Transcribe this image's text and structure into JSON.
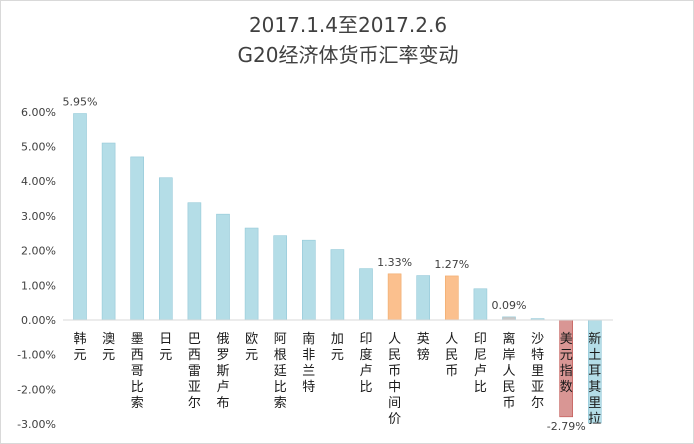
{
  "chart_data": {
    "type": "bar",
    "title": "2017.1.4至2017.2.6",
    "subtitle": "G20经济体货币汇率变动",
    "xlabel": "",
    "ylabel": "",
    "ylim": [
      -0.03,
      0.065
    ],
    "yticks": [
      "-3.00%",
      "-2.00%",
      "-1.00%",
      "0.00%",
      "1.00%",
      "2.00%",
      "3.00%",
      "4.00%",
      "5.00%",
      "6.00%"
    ],
    "grid": false,
    "legend": "none",
    "categories": [
      "韩元",
      "澳元",
      "墨西哥比索",
      "日元",
      "巴西雷亚尔",
      "俄罗斯卢布",
      "欧元",
      "阿根廷比索",
      "南非兰特",
      "加元",
      "印度卢比",
      "人民币中间价",
      "英镑",
      "人民币",
      "印尼卢比",
      "离岸人民币",
      "沙特里亚尔",
      "美元指数",
      "新土耳其里拉"
    ],
    "values": [
      0.0595,
      0.051,
      0.047,
      0.041,
      0.0338,
      0.0305,
      0.0265,
      0.0243,
      0.023,
      0.0203,
      0.0148,
      0.0133,
      0.0128,
      0.0127,
      0.009,
      0.0009,
      0.0004,
      -0.0279,
      -0.0297
    ],
    "data_labels": [
      {
        "index": 0,
        "text": "5.95%"
      },
      {
        "index": 11,
        "text": "1.33%"
      },
      {
        "index": 13,
        "text": "1.27%"
      },
      {
        "index": 15,
        "text": "0.09%"
      },
      {
        "index": 17,
        "text": "-2.79%"
      }
    ],
    "colors": {
      "default": "#b4dde7",
      "default_stroke": "#93c9d8",
      "highlight": "#fbc08e",
      "highlight_stroke": "#f0a868",
      "usd": "#d99694",
      "usd_stroke": "#c0504d",
      "offshore": "#c8c8c8",
      "axis": "#d9d9d9"
    },
    "bar_colors": [
      "default",
      "default",
      "default",
      "default",
      "default",
      "default",
      "default",
      "default",
      "default",
      "default",
      "default",
      "highlight",
      "default",
      "highlight",
      "default",
      "offshore",
      "default",
      "usd",
      "default"
    ]
  }
}
